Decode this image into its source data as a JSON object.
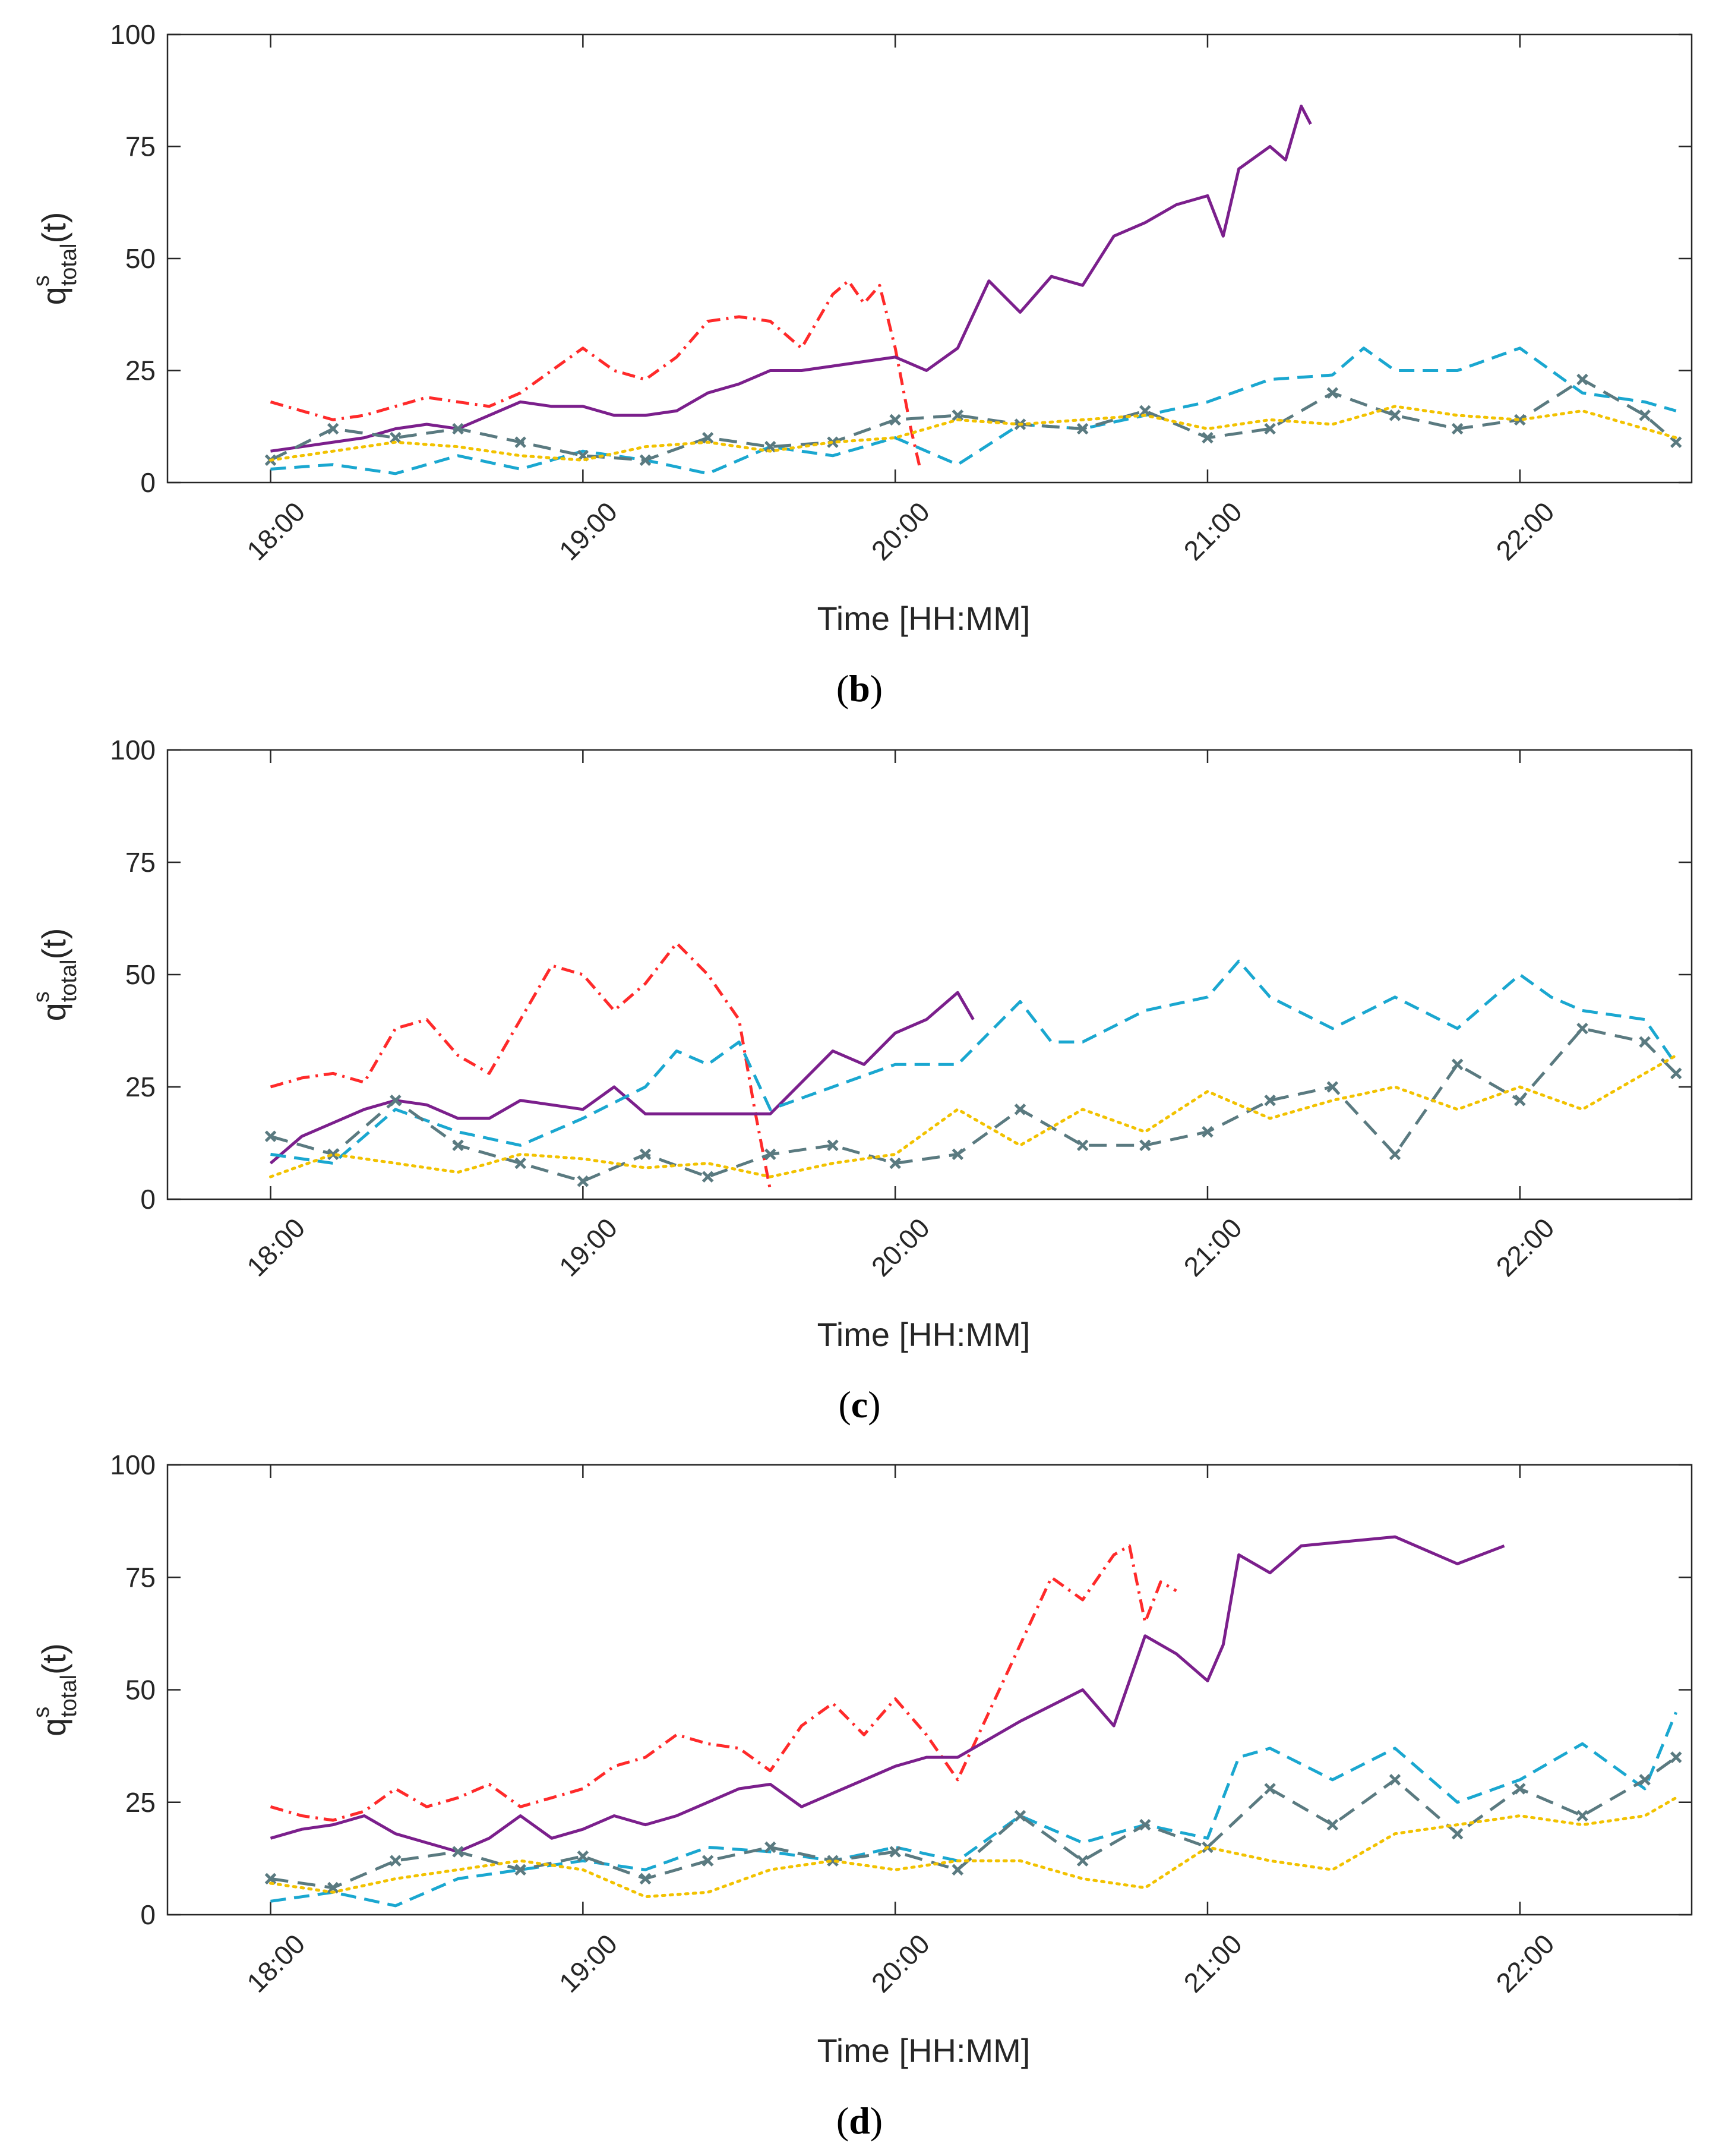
{
  "chart_data": [
    {
      "type": "line",
      "panel": "b",
      "caption": "(b)",
      "caption_letter": "b",
      "xlabel": "Time [HH:MM]",
      "ylabel": "q",
      "ylabel_sup": "s",
      "ylabel_sub": "total",
      "ylabel_suffix": "(t)",
      "xlim": [
        17.67,
        22.55
      ],
      "ylim": [
        0,
        100
      ],
      "xticks": [
        18,
        19,
        20,
        21,
        22
      ],
      "xtick_labels": [
        "18:00",
        "19:00",
        "20:00",
        "21:00",
        "22:00"
      ],
      "yticks": [
        0,
        25,
        50,
        75,
        100
      ],
      "ytick_labels": [
        "0",
        "25",
        "50",
        "75",
        "100"
      ],
      "series": [
        {
          "name": "red-dashdot",
          "color": "#ff2a2a",
          "style": "dashdot",
          "x": [
            18.0,
            18.1,
            18.2,
            18.3,
            18.4,
            18.5,
            18.6,
            18.7,
            18.8,
            18.9,
            19.0,
            19.1,
            19.2,
            19.3,
            19.4,
            19.5,
            19.6,
            19.7,
            19.8,
            19.85,
            19.9,
            19.95,
            20.0,
            20.05,
            20.08
          ],
          "y": [
            18,
            16,
            14,
            15,
            17,
            19,
            18,
            17,
            20,
            25,
            30,
            25,
            23,
            28,
            36,
            37,
            36,
            30,
            42,
            45,
            40,
            44,
            30,
            12,
            3
          ]
        },
        {
          "name": "purple-solid",
          "color": "#7b1f8c",
          "style": "solid",
          "x": [
            18.0,
            18.1,
            18.2,
            18.3,
            18.4,
            18.5,
            18.6,
            18.7,
            18.8,
            18.9,
            19.0,
            19.1,
            19.2,
            19.3,
            19.4,
            19.5,
            19.6,
            19.7,
            19.8,
            19.9,
            20.0,
            20.1,
            20.2,
            20.3,
            20.4,
            20.5,
            20.6,
            20.7,
            20.8,
            20.9,
            21.0,
            21.05,
            21.1,
            21.2,
            21.25,
            21.3,
            21.33
          ],
          "y": [
            7,
            8,
            9,
            10,
            12,
            13,
            12,
            15,
            18,
            17,
            17,
            15,
            15,
            16,
            20,
            22,
            25,
            25,
            26,
            27,
            28,
            25,
            30,
            45,
            38,
            46,
            44,
            55,
            58,
            62,
            64,
            55,
            70,
            75,
            72,
            84,
            80
          ]
        },
        {
          "name": "cyan-dashed",
          "color": "#1aa7d0",
          "style": "dashed",
          "x": [
            18.0,
            18.2,
            18.4,
            18.6,
            18.8,
            19.0,
            19.2,
            19.4,
            19.6,
            19.8,
            20.0,
            20.2,
            20.4,
            20.6,
            20.8,
            21.0,
            21.2,
            21.4,
            21.5,
            21.6,
            21.8,
            22.0,
            22.2,
            22.4,
            22.5
          ],
          "y": [
            3,
            4,
            2,
            6,
            3,
            7,
            5,
            2,
            8,
            6,
            10,
            4,
            13,
            12,
            15,
            18,
            23,
            24,
            30,
            25,
            25,
            30,
            20,
            18,
            16
          ]
        },
        {
          "name": "slate-dashed-x",
          "color": "#5a7a80",
          "style": "dashed-x",
          "x": [
            18.0,
            18.2,
            18.4,
            18.6,
            18.8,
            19.0,
            19.2,
            19.4,
            19.6,
            19.8,
            20.0,
            20.2,
            20.4,
            20.6,
            20.8,
            21.0,
            21.2,
            21.4,
            21.6,
            21.8,
            22.0,
            22.2,
            22.4,
            22.5
          ],
          "y": [
            5,
            12,
            10,
            12,
            9,
            6,
            5,
            10,
            8,
            9,
            14,
            15,
            13,
            12,
            16,
            10,
            12,
            20,
            15,
            12,
            14,
            23,
            15,
            9
          ]
        },
        {
          "name": "yellow-dotted",
          "color": "#f2c200",
          "style": "dotted",
          "x": [
            18.0,
            18.2,
            18.4,
            18.6,
            18.8,
            19.0,
            19.2,
            19.4,
            19.6,
            19.8,
            20.0,
            20.2,
            20.4,
            20.6,
            20.8,
            21.0,
            21.2,
            21.4,
            21.6,
            21.8,
            22.0,
            22.2,
            22.4,
            22.5
          ],
          "y": [
            5,
            7,
            9,
            8,
            6,
            5,
            8,
            9,
            7,
            9,
            10,
            14,
            13,
            14,
            15,
            12,
            14,
            13,
            17,
            15,
            14,
            16,
            12,
            10
          ]
        }
      ]
    },
    {
      "type": "line",
      "panel": "c",
      "caption": "(c)",
      "caption_letter": "c",
      "xlabel": "Time [HH:MM]",
      "ylabel": "q",
      "ylabel_sup": "s",
      "ylabel_sub": "total",
      "ylabel_suffix": "(t)",
      "xlim": [
        17.67,
        22.55
      ],
      "ylim": [
        0,
        100
      ],
      "xticks": [
        18,
        19,
        20,
        21,
        22
      ],
      "xtick_labels": [
        "18:00",
        "19:00",
        "20:00",
        "21:00",
        "22:00"
      ],
      "yticks": [
        0,
        25,
        50,
        75,
        100
      ],
      "ytick_labels": [
        "0",
        "25",
        "50",
        "75",
        "100"
      ],
      "series": [
        {
          "name": "red-dashdot",
          "color": "#ff2a2a",
          "style": "dashdot",
          "x": [
            18.0,
            18.1,
            18.2,
            18.3,
            18.4,
            18.5,
            18.6,
            18.7,
            18.8,
            18.9,
            19.0,
            19.1,
            19.2,
            19.3,
            19.4,
            19.5,
            19.55,
            19.6
          ],
          "y": [
            25,
            27,
            28,
            26,
            38,
            40,
            32,
            28,
            40,
            52,
            50,
            42,
            48,
            57,
            50,
            40,
            20,
            2
          ]
        },
        {
          "name": "purple-solid",
          "color": "#7b1f8c",
          "style": "solid",
          "x": [
            18.0,
            18.1,
            18.2,
            18.3,
            18.4,
            18.5,
            18.6,
            18.7,
            18.8,
            18.9,
            19.0,
            19.1,
            19.2,
            19.4,
            19.6,
            19.8,
            19.9,
            20.0,
            20.1,
            20.2,
            20.25
          ],
          "y": [
            8,
            14,
            17,
            20,
            22,
            21,
            18,
            18,
            22,
            21,
            20,
            25,
            19,
            19,
            19,
            33,
            30,
            37,
            40,
            46,
            40
          ]
        },
        {
          "name": "cyan-dashed",
          "color": "#1aa7d0",
          "style": "dashed",
          "x": [
            18.0,
            18.2,
            18.4,
            18.6,
            18.8,
            19.0,
            19.2,
            19.3,
            19.4,
            19.5,
            19.6,
            19.8,
            20.0,
            20.2,
            20.4,
            20.5,
            20.6,
            20.8,
            21.0,
            21.1,
            21.2,
            21.4,
            21.6,
            21.8,
            22.0,
            22.1,
            22.2,
            22.4,
            22.5
          ],
          "y": [
            10,
            8,
            20,
            15,
            12,
            18,
            25,
            33,
            30,
            35,
            20,
            25,
            30,
            30,
            44,
            35,
            35,
            42,
            45,
            53,
            45,
            38,
            45,
            38,
            50,
            45,
            42,
            40,
            30
          ]
        },
        {
          "name": "slate-dashed-x",
          "color": "#5a7a80",
          "style": "dashed-x",
          "x": [
            18.0,
            18.2,
            18.4,
            18.6,
            18.8,
            19.0,
            19.2,
            19.4,
            19.6,
            19.8,
            20.0,
            20.2,
            20.4,
            20.6,
            20.8,
            21.0,
            21.2,
            21.4,
            21.6,
            21.8,
            22.0,
            22.2,
            22.4,
            22.5
          ],
          "y": [
            14,
            10,
            22,
            12,
            8,
            4,
            10,
            5,
            10,
            12,
            8,
            10,
            20,
            12,
            12,
            15,
            22,
            25,
            10,
            30,
            22,
            38,
            35,
            28
          ]
        },
        {
          "name": "yellow-dotted",
          "color": "#f2c200",
          "style": "dotted",
          "x": [
            18.0,
            18.2,
            18.4,
            18.6,
            18.8,
            19.0,
            19.2,
            19.4,
            19.6,
            19.8,
            20.0,
            20.2,
            20.4,
            20.6,
            20.8,
            21.0,
            21.2,
            21.4,
            21.6,
            21.8,
            22.0,
            22.2,
            22.4,
            22.5
          ],
          "y": [
            5,
            10,
            8,
            6,
            10,
            9,
            7,
            8,
            5,
            8,
            10,
            20,
            12,
            20,
            15,
            24,
            18,
            22,
            25,
            20,
            25,
            20,
            28,
            32
          ]
        }
      ]
    },
    {
      "type": "line",
      "panel": "d",
      "caption": "(d)",
      "caption_letter": "d",
      "xlabel": "Time [HH:MM]",
      "ylabel": "q",
      "ylabel_sup": "s",
      "ylabel_sub": "total",
      "ylabel_suffix": "(t)",
      "xlim": [
        17.67,
        22.55
      ],
      "ylim": [
        0,
        100
      ],
      "xticks": [
        18,
        19,
        20,
        21,
        22
      ],
      "xtick_labels": [
        "18:00",
        "19:00",
        "20:00",
        "21:00",
        "22:00"
      ],
      "yticks": [
        0,
        25,
        50,
        75,
        100
      ],
      "ytick_labels": [
        "0",
        "25",
        "50",
        "75",
        "100"
      ],
      "series": [
        {
          "name": "red-dashdot",
          "color": "#ff2a2a",
          "style": "dashdot",
          "x": [
            18.0,
            18.1,
            18.2,
            18.3,
            18.4,
            18.5,
            18.6,
            18.7,
            18.8,
            18.9,
            19.0,
            19.1,
            19.2,
            19.3,
            19.4,
            19.5,
            19.6,
            19.7,
            19.8,
            19.9,
            20.0,
            20.1,
            20.2,
            20.3,
            20.4,
            20.5,
            20.6,
            20.7,
            20.75,
            20.8,
            20.85,
            20.9
          ],
          "y": [
            24,
            22,
            21,
            23,
            28,
            24,
            26,
            29,
            24,
            26,
            28,
            33,
            35,
            40,
            38,
            37,
            32,
            42,
            47,
            40,
            48,
            40,
            30,
            45,
            60,
            75,
            70,
            80,
            82,
            65,
            74,
            72
          ]
        },
        {
          "name": "purple-solid",
          "color": "#7b1f8c",
          "style": "solid",
          "x": [
            18.0,
            18.1,
            18.2,
            18.3,
            18.4,
            18.5,
            18.6,
            18.7,
            18.8,
            18.9,
            19.0,
            19.1,
            19.2,
            19.3,
            19.4,
            19.5,
            19.6,
            19.7,
            19.8,
            19.9,
            20.0,
            20.1,
            20.2,
            20.4,
            20.6,
            20.7,
            20.8,
            20.9,
            21.0,
            21.05,
            21.1,
            21.2,
            21.3,
            21.6,
            21.8,
            21.95
          ],
          "y": [
            17,
            19,
            20,
            22,
            18,
            16,
            14,
            17,
            22,
            17,
            19,
            22,
            20,
            22,
            25,
            28,
            29,
            24,
            27,
            30,
            33,
            35,
            35,
            43,
            50,
            42,
            62,
            58,
            52,
            60,
            80,
            76,
            82,
            84,
            78,
            82
          ]
        },
        {
          "name": "cyan-dashed",
          "color": "#1aa7d0",
          "style": "dashed",
          "x": [
            18.0,
            18.2,
            18.4,
            18.6,
            18.8,
            19.0,
            19.2,
            19.4,
            19.6,
            19.8,
            20.0,
            20.2,
            20.4,
            20.6,
            20.8,
            21.0,
            21.1,
            21.2,
            21.4,
            21.6,
            21.8,
            22.0,
            22.2,
            22.4,
            22.5
          ],
          "y": [
            3,
            5,
            2,
            8,
            10,
            12,
            10,
            15,
            14,
            12,
            15,
            12,
            22,
            16,
            20,
            17,
            35,
            37,
            30,
            37,
            25,
            30,
            38,
            28,
            45
          ]
        },
        {
          "name": "slate-dashed-x",
          "color": "#5a7a80",
          "style": "dashed-x",
          "x": [
            18.0,
            18.2,
            18.4,
            18.6,
            18.8,
            19.0,
            19.2,
            19.4,
            19.6,
            19.8,
            20.0,
            20.2,
            20.4,
            20.6,
            20.8,
            21.0,
            21.2,
            21.4,
            21.6,
            21.8,
            22.0,
            22.2,
            22.4,
            22.5
          ],
          "y": [
            8,
            6,
            12,
            14,
            10,
            13,
            8,
            12,
            15,
            12,
            14,
            10,
            22,
            12,
            20,
            15,
            28,
            20,
            30,
            18,
            28,
            22,
            30,
            35
          ]
        },
        {
          "name": "yellow-dotted",
          "color": "#f2c200",
          "style": "dotted",
          "x": [
            18.0,
            18.2,
            18.4,
            18.6,
            18.8,
            19.0,
            19.2,
            19.4,
            19.6,
            19.8,
            20.0,
            20.2,
            20.4,
            20.6,
            20.8,
            21.0,
            21.2,
            21.4,
            21.6,
            21.8,
            22.0,
            22.2,
            22.4,
            22.5
          ],
          "y": [
            7,
            5,
            8,
            10,
            12,
            10,
            4,
            5,
            10,
            12,
            10,
            12,
            12,
            8,
            6,
            15,
            12,
            10,
            18,
            20,
            22,
            20,
            22,
            26
          ]
        }
      ]
    }
  ]
}
